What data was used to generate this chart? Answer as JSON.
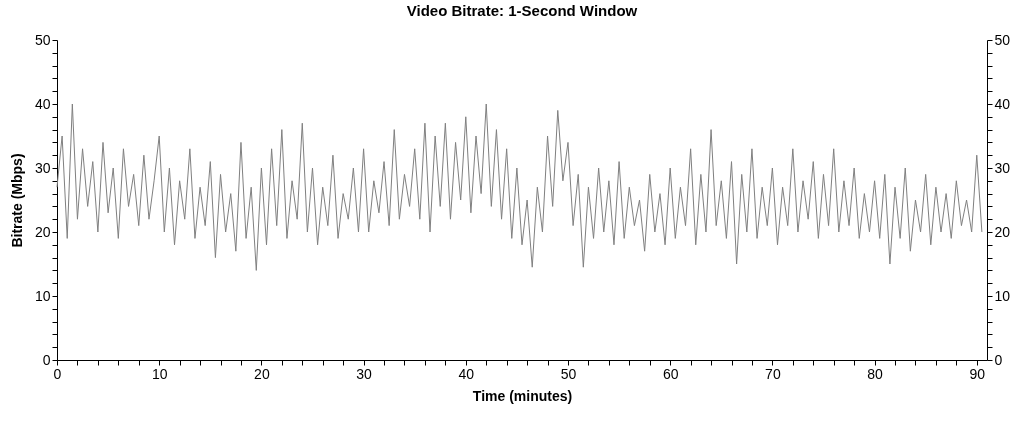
{
  "chart_data": {
    "type": "line",
    "title": "Video Bitrate: 1-Second Window",
    "xlabel": "Time (minutes)",
    "ylabel": "Bitrate (Mbps)",
    "x": [
      0,
      0.5,
      1,
      1.5,
      2,
      2.5,
      3,
      3.5,
      4,
      4.5,
      5,
      5.5,
      6,
      6.5,
      7,
      7.5,
      8,
      8.5,
      9,
      9.5,
      10,
      10.5,
      11,
      11.5,
      12,
      12.5,
      13,
      13.5,
      14,
      14.5,
      15,
      15.5,
      16,
      16.5,
      17,
      17.5,
      18,
      18.5,
      19,
      19.5,
      20,
      20.5,
      21,
      21.5,
      22,
      22.5,
      23,
      23.5,
      24,
      24.5,
      25,
      25.5,
      26,
      26.5,
      27,
      27.5,
      28,
      28.5,
      29,
      29.5,
      30,
      30.5,
      31,
      31.5,
      32,
      32.5,
      33,
      33.5,
      34,
      34.5,
      35,
      35.5,
      36,
      36.5,
      37,
      37.5,
      38,
      38.5,
      39,
      39.5,
      40,
      40.5,
      41,
      41.5,
      42,
      42.5,
      43,
      43.5,
      44,
      44.5,
      45,
      45.5,
      46,
      46.5,
      47,
      47.5,
      48,
      48.5,
      49,
      49.5,
      50,
      50.5,
      51,
      51.5,
      52,
      52.5,
      53,
      53.5,
      54,
      54.5,
      55,
      55.5,
      56,
      56.5,
      57,
      57.5,
      58,
      58.5,
      59,
      59.5,
      60,
      60.5,
      61,
      61.5,
      62,
      62.5,
      63,
      63.5,
      64,
      64.5,
      65,
      65.5,
      66,
      66.5,
      67,
      67.5,
      68,
      68.5,
      69,
      69.5,
      70,
      70.5,
      71,
      71.5,
      72,
      72.5,
      73,
      73.5,
      74,
      74.5,
      75,
      75.5,
      76,
      76.5,
      77,
      77.5,
      78,
      78.5,
      79,
      79.5,
      80,
      80.5,
      81,
      81.5,
      82,
      82.5,
      83,
      83.5,
      84,
      84.5,
      85,
      85.5,
      86,
      86.5,
      87,
      87.5,
      88,
      88.5,
      89,
      89.5,
      90,
      90.5
    ],
    "series": [
      {
        "color": "#808080",
        "values": [
          27,
          35,
          19,
          40,
          22,
          33,
          24,
          31,
          20,
          34,
          23,
          30,
          19,
          33,
          24,
          29,
          21,
          32,
          22,
          28,
          35,
          20,
          30,
          18,
          28,
          22,
          33,
          19,
          27,
          21,
          31,
          16,
          29,
          20,
          26,
          17,
          34,
          19,
          27,
          14,
          30,
          18,
          33,
          21,
          36,
          19,
          28,
          22,
          37,
          20,
          30,
          18,
          27,
          21,
          32,
          19,
          26,
          22,
          30,
          20,
          33,
          20,
          28,
          23,
          31,
          21,
          36,
          22,
          29,
          24,
          33,
          22,
          37,
          20,
          35,
          24,
          37,
          22,
          34,
          25,
          38,
          23,
          35,
          26,
          40,
          24,
          36,
          22,
          33,
          19,
          30,
          18,
          25,
          14.5,
          27,
          20,
          35,
          24,
          39,
          28,
          34,
          21,
          29,
          14.5,
          27,
          19,
          30,
          20,
          28,
          18,
          31,
          19,
          27,
          21,
          25,
          17,
          29,
          20,
          26,
          18,
          30,
          19,
          27,
          21,
          33,
          18,
          29,
          20,
          36,
          21,
          28,
          19,
          31,
          15,
          29,
          20,
          33,
          19,
          27,
          21,
          30,
          18,
          27,
          21,
          33,
          20,
          28,
          22,
          31,
          19,
          29,
          21,
          33,
          20,
          28,
          21,
          30,
          19,
          26,
          20,
          28,
          19,
          29,
          15,
          27,
          19,
          30,
          17,
          25,
          20,
          29,
          18,
          27,
          20,
          26,
          19,
          28,
          21,
          25,
          20,
          32,
          20
        ]
      }
    ],
    "xlim": [
      0,
      91
    ],
    "ylim": [
      0,
      50
    ],
    "y2lim": [
      0,
      50
    ],
    "xticks": [
      0,
      {
        "value": 2,
        "label": null
      },
      {
        "value": 4,
        "label": null
      },
      {
        "value": 6,
        "label": null
      },
      {
        "value": 8,
        "label": null
      },
      10,
      {
        "value": 12,
        "label": null
      },
      {
        "value": 14,
        "label": null
      },
      {
        "value": 16,
        "label": null
      },
      {
        "value": 18,
        "label": null
      },
      20,
      {
        "value": 22,
        "label": null
      },
      {
        "value": 24,
        "label": null
      },
      {
        "value": 26,
        "label": null
      },
      {
        "value": 28,
        "label": null
      },
      30,
      {
        "value": 32,
        "label": null
      },
      {
        "value": 34,
        "label": null
      },
      {
        "value": 36,
        "label": null
      },
      {
        "value": 38,
        "label": null
      },
      40,
      {
        "value": 42,
        "label": null
      },
      {
        "value": 44,
        "label": null
      },
      {
        "value": 46,
        "label": null
      },
      {
        "value": 48,
        "label": null
      },
      50,
      {
        "value": 52,
        "label": null
      },
      {
        "value": 54,
        "label": null
      },
      {
        "value": 56,
        "label": null
      },
      {
        "value": 58,
        "label": null
      },
      60,
      {
        "value": 62,
        "label": null
      },
      {
        "value": 64,
        "label": null
      },
      {
        "value": 66,
        "label": null
      },
      {
        "value": 68,
        "label": null
      },
      70,
      {
        "value": 72,
        "label": null
      },
      {
        "value": 74,
        "label": null
      },
      {
        "value": 76,
        "label": null
      },
      {
        "value": 78,
        "label": null
      },
      80,
      {
        "value": 82,
        "label": null
      },
      {
        "value": 84,
        "label": null
      },
      {
        "value": 86,
        "label": null
      },
      {
        "value": 88,
        "label": null
      },
      90
    ],
    "yticks": [
      0,
      {
        "value": 2,
        "label": null
      },
      {
        "value": 4,
        "label": null
      },
      {
        "value": 6,
        "label": null
      },
      {
        "value": 8,
        "label": null
      },
      10,
      {
        "value": 12,
        "label": null
      },
      {
        "value": 14,
        "label": null
      },
      {
        "value": 16,
        "label": null
      },
      {
        "value": 18,
        "label": null
      },
      20,
      {
        "value": 22,
        "label": null
      },
      {
        "value": 24,
        "label": null
      },
      {
        "value": 26,
        "label": null
      },
      {
        "value": 28,
        "label": null
      },
      30,
      {
        "value": 32,
        "label": null
      },
      {
        "value": 34,
        "label": null
      },
      {
        "value": 36,
        "label": null
      },
      {
        "value": 38,
        "label": null
      },
      40,
      {
        "value": 42,
        "label": null
      },
      {
        "value": 44,
        "label": null
      },
      {
        "value": 46,
        "label": null
      },
      {
        "value": 48,
        "label": null
      },
      50
    ],
    "y2ticks": [
      0,
      {
        "value": 2,
        "label": null
      },
      {
        "value": 4,
        "label": null
      },
      {
        "value": 6,
        "label": null
      },
      {
        "value": 8,
        "label": null
      },
      10,
      {
        "value": 12,
        "label": null
      },
      {
        "value": 14,
        "label": null
      },
      {
        "value": 16,
        "label": null
      },
      {
        "value": 18,
        "label": null
      },
      20,
      {
        "value": 22,
        "label": null
      },
      {
        "value": 24,
        "label": null
      },
      {
        "value": 26,
        "label": null
      },
      {
        "value": 28,
        "label": null
      },
      30,
      {
        "value": 32,
        "label": null
      },
      {
        "value": 34,
        "label": null
      },
      {
        "value": 36,
        "label": null
      },
      {
        "value": 38,
        "label": null
      },
      40,
      {
        "value": 42,
        "label": null
      },
      {
        "value": 44,
        "label": null
      },
      {
        "value": 46,
        "label": null
      },
      {
        "value": 48,
        "label": null
      },
      50
    ],
    "grid": false,
    "marker": "none",
    "line_style": "solid"
  }
}
